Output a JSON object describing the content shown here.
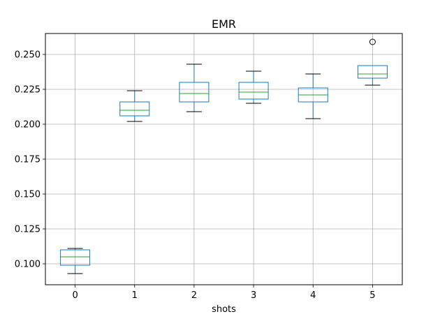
{
  "chart_data": {
    "type": "boxplot",
    "title": "EMR",
    "xlabel": "shots",
    "ylabel": "",
    "ylim": [
      0.085,
      0.265
    ],
    "grid": true,
    "categories": [
      "0",
      "1",
      "2",
      "3",
      "4",
      "5"
    ],
    "y_ticks": [
      "0.100",
      "0.125",
      "0.150",
      "0.175",
      "0.200",
      "0.225",
      "0.250"
    ],
    "boxes": [
      {
        "category": "0",
        "whisker_low": 0.093,
        "q1": 0.099,
        "median": 0.105,
        "q3": 0.11,
        "whisker_high": 0.111,
        "outliers": []
      },
      {
        "category": "1",
        "whisker_low": 0.202,
        "q1": 0.206,
        "median": 0.21,
        "q3": 0.216,
        "whisker_high": 0.224,
        "outliers": []
      },
      {
        "category": "2",
        "whisker_low": 0.209,
        "q1": 0.216,
        "median": 0.222,
        "q3": 0.23,
        "whisker_high": 0.243,
        "outliers": []
      },
      {
        "category": "3",
        "whisker_low": 0.215,
        "q1": 0.218,
        "median": 0.223,
        "q3": 0.23,
        "whisker_high": 0.238,
        "outliers": []
      },
      {
        "category": "4",
        "whisker_low": 0.204,
        "q1": 0.216,
        "median": 0.221,
        "q3": 0.226,
        "whisker_high": 0.236,
        "outliers": []
      },
      {
        "category": "5",
        "whisker_low": 0.228,
        "q1": 0.233,
        "median": 0.236,
        "q3": 0.242,
        "whisker_high": 0.242,
        "outliers": [
          0.259
        ]
      }
    ],
    "colors": {
      "box": "#1f77b4",
      "median": "#2ca02c",
      "whisker_cap": "#000000",
      "grid": "#b0b0b0",
      "outlier": "#000000"
    }
  }
}
